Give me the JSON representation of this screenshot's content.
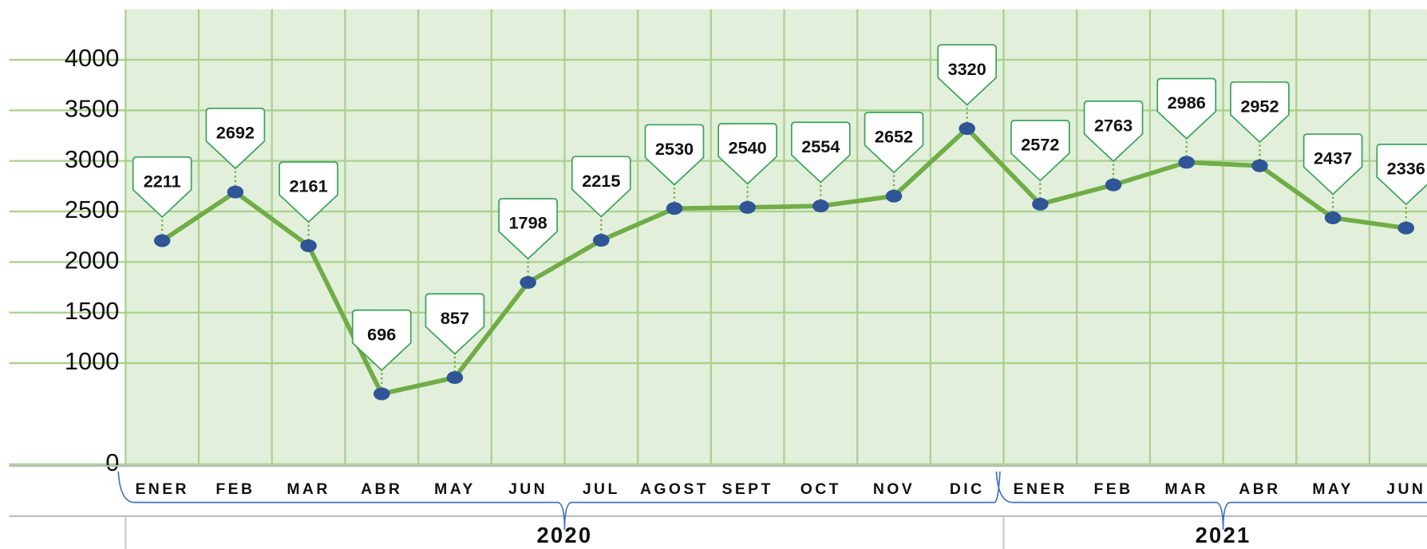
{
  "chart_data": {
    "type": "line",
    "groups": [
      {
        "label": "2020",
        "categories": [
          "ENER",
          "FEB",
          "MAR",
          "ABR",
          "MAY",
          "JUN",
          "JUL",
          "AGOST",
          "SEPT",
          "OCT",
          "NOV",
          "DIC"
        ]
      },
      {
        "label": "2021",
        "categories": [
          "ENER",
          "FEB",
          "MAR",
          "ABR",
          "MAY",
          "JUN"
        ]
      }
    ],
    "series": [
      {
        "color": "#70ad47",
        "marker_color": "#2f5597",
        "values": [
          2211,
          2692,
          2161,
          696,
          857,
          1798,
          2215,
          2530,
          2540,
          2554,
          2652,
          3320,
          2572,
          2763,
          2986,
          2952,
          2437,
          2336
        ]
      }
    ],
    "ylim": [
      0,
      4500
    ],
    "yticks": [
      0,
      1000,
      1500,
      2000,
      2500,
      3000,
      3500,
      4000
    ],
    "grid": true
  }
}
